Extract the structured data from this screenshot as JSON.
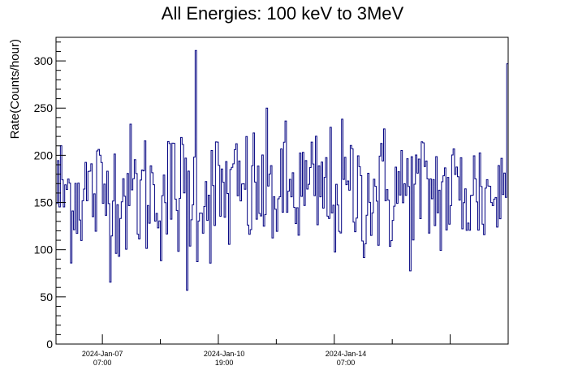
{
  "chart_data": {
    "type": "line",
    "title": "All Energies:  100 keV to 3MeV",
    "xlabel": "",
    "ylabel": "Rate(Counts/hour)",
    "ylim": [
      0,
      325
    ],
    "yticks": [
      0,
      50,
      100,
      150,
      200,
      250,
      300
    ],
    "xlim": [
      "2024-Jan-05 23:00",
      "2024-Jan-18 23:00"
    ],
    "xticks": [
      {
        "date": "2024-Jan-07",
        "time": "07:00"
      },
      {
        "date": "2024-Jan-10",
        "time": "19:00"
      },
      {
        "date": "2024-Jan-14",
        "time": "07:00"
      }
    ],
    "series": [
      {
        "color": "#000080",
        "values": {
          "mean": 160,
          "typical_range": [
            100,
            230
          ],
          "min": 57,
          "max": 311,
          "n_points": 312
        }
      }
    ],
    "grid": false,
    "legend": "none"
  }
}
